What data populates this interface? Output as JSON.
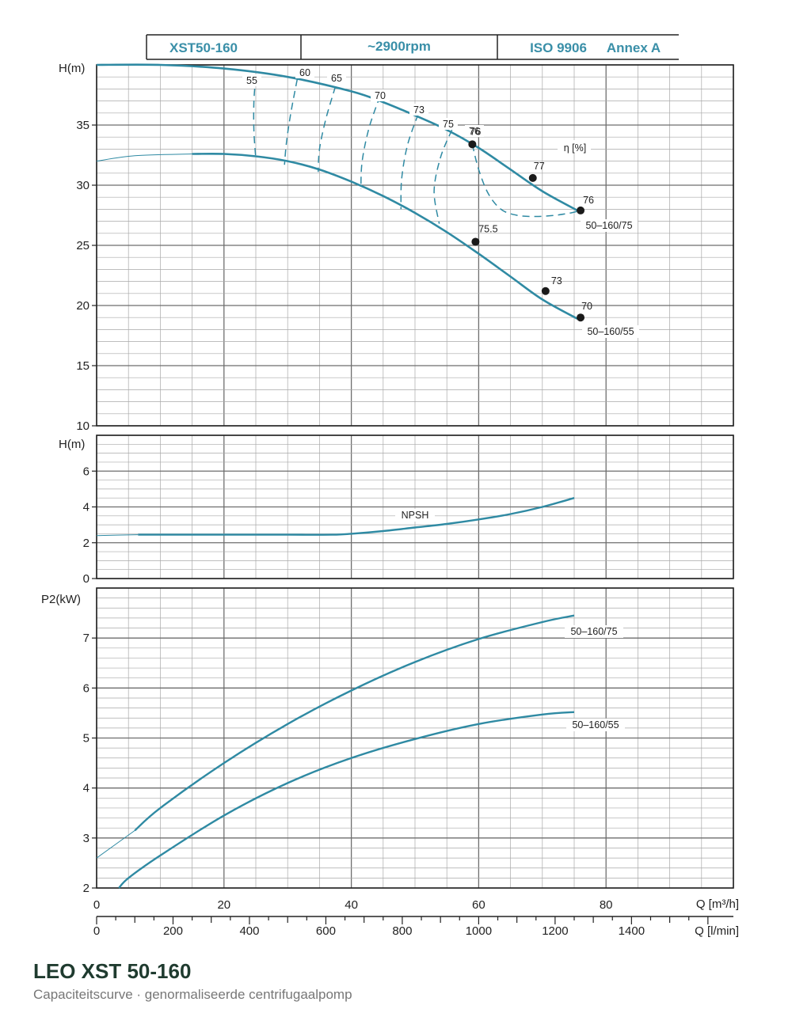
{
  "header": {
    "model": "XST50-160",
    "speed": "~2900rpm",
    "standard": "ISO 9906",
    "annex": "Annex A"
  },
  "caption": {
    "title": "LEO XST 50-160",
    "subtitle": "Capaciteitscurve · genormaliseerde centrifugaalpomp"
  },
  "colors": {
    "curve": "#2f8aa3",
    "grid": "#a9a9a9",
    "frame": "#222222",
    "point": "#1a1a1a"
  },
  "chart_data": [
    {
      "id": "head",
      "type": "line",
      "ylabel": "H(m)",
      "ylim": [
        10,
        40
      ],
      "xlim": [
        0,
        100
      ],
      "yticks": [
        10,
        15,
        20,
        25,
        30,
        35
      ],
      "series": [
        {
          "name": "50–160/75",
          "x": [
            0,
            10,
            20,
            30,
            40,
            45,
            50,
            55,
            60,
            65,
            70,
            75.5
          ],
          "y": [
            40.0,
            40.0,
            39.7,
            39.0,
            37.8,
            36.9,
            35.8,
            34.6,
            33.1,
            31.3,
            29.5,
            27.9
          ]
        },
        {
          "name": "50–160/55",
          "x": [
            15,
            20,
            25,
            30,
            35,
            40,
            45,
            50,
            55,
            60,
            65,
            70,
            75.5
          ],
          "y": [
            32.6,
            32.6,
            32.4,
            32.0,
            31.3,
            30.3,
            29.1,
            27.7,
            26.1,
            24.3,
            22.4,
            20.5,
            18.9
          ]
        }
      ],
      "operating_points": [
        {
          "x": 59.0,
          "y": 33.4,
          "label": "76"
        },
        {
          "x": 68.5,
          "y": 30.6,
          "label": "77"
        },
        {
          "x": 76.0,
          "y": 27.9,
          "label": "76"
        },
        {
          "x": 59.5,
          "y": 25.3,
          "label": "75.5"
        },
        {
          "x": 70.5,
          "y": 21.2,
          "label": "73"
        },
        {
          "x": 76.0,
          "y": 19.0,
          "label": "70"
        }
      ],
      "efficiency_contours": [
        {
          "label": "55",
          "x": [
            25.0,
            24.7,
            24.7,
            25.0
          ],
          "y": [
            39.0,
            37.0,
            34.5,
            32.2
          ]
        },
        {
          "label": "60",
          "x": [
            31.5,
            30.5,
            29.8,
            29.5
          ],
          "y": [
            38.8,
            36.0,
            33.5,
            31.7
          ]
        },
        {
          "label": "65",
          "x": [
            37.5,
            36.0,
            35.0,
            34.8
          ],
          "y": [
            38.2,
            35.5,
            33.0,
            31.1
          ]
        },
        {
          "label": "70",
          "x": [
            44.5,
            42.8,
            41.7,
            41.5
          ],
          "y": [
            37.4,
            34.8,
            32.0,
            29.7
          ]
        },
        {
          "label": "73",
          "x": [
            50.5,
            48.8,
            47.9,
            47.8
          ],
          "y": [
            35.9,
            33.3,
            30.5,
            28.0
          ]
        },
        {
          "label": "75",
          "x": [
            55.8,
            54.0,
            53.0,
            53.8
          ],
          "y": [
            34.6,
            32.3,
            29.5,
            26.8
          ]
        },
        {
          "label": "76",
          "x": [
            59.0,
            60.0,
            61.5,
            63.5,
            66.0,
            69.0,
            72.0,
            74.5,
            76.0
          ],
          "y": [
            33.4,
            31.3,
            29.3,
            28.0,
            27.5,
            27.4,
            27.5,
            27.7,
            27.9
          ]
        }
      ],
      "annotations": {
        "efficiency_label": "η [%]"
      }
    },
    {
      "id": "npsh",
      "type": "line",
      "ylabel": "H(m)",
      "ylim": [
        0,
        8
      ],
      "xlim": [
        0,
        100
      ],
      "yticks": [
        0,
        2,
        4,
        6
      ],
      "series": [
        {
          "name": "NPSH",
          "x": [
            0,
            5,
            10,
            20,
            30,
            37,
            40,
            45,
            50,
            55,
            60,
            65,
            70,
            75
          ],
          "y": [
            2.4,
            2.45,
            2.45,
            2.45,
            2.45,
            2.45,
            2.5,
            2.65,
            2.85,
            3.05,
            3.3,
            3.6,
            4.0,
            4.5
          ]
        }
      ]
    },
    {
      "id": "power",
      "type": "line",
      "ylabel": "P2(kW)",
      "ylim": [
        2,
        8
      ],
      "xlim": [
        0,
        100
      ],
      "yticks": [
        2,
        3,
        4,
        5,
        6,
        7
      ],
      "series": [
        {
          "name": "50–160/75",
          "x": [
            0,
            6,
            10,
            20,
            30,
            40,
            50,
            60,
            70,
            75
          ],
          "y": [
            2.6,
            3.15,
            3.6,
            4.5,
            5.28,
            5.95,
            6.52,
            6.98,
            7.32,
            7.45
          ]
        },
        {
          "name": "50–160/55",
          "x": [
            3.5,
            5,
            10,
            20,
            30,
            40,
            50,
            60,
            70,
            75
          ],
          "y": [
            2.0,
            2.2,
            2.65,
            3.45,
            4.1,
            4.6,
            4.98,
            5.28,
            5.47,
            5.52
          ]
        }
      ]
    }
  ],
  "axes": {
    "x_primary_label": "Q [m³/h]",
    "x_primary_ticks": [
      0,
      20,
      40,
      60,
      80
    ],
    "x_secondary_label": "Q [l/min]",
    "x_secondary_ticks": [
      0,
      200,
      400,
      600,
      800,
      1000,
      1200,
      1400
    ]
  }
}
